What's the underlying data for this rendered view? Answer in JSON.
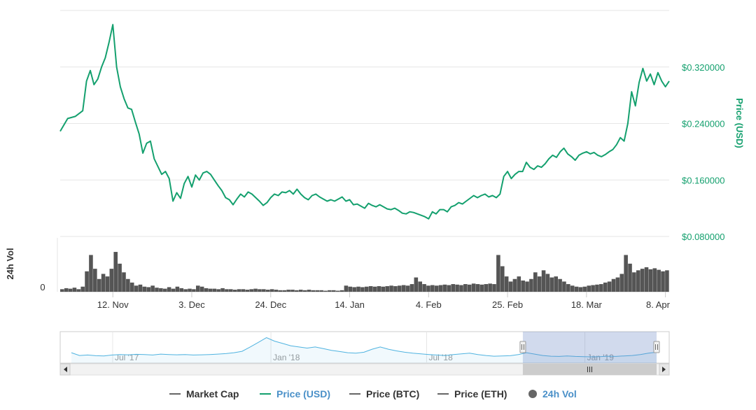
{
  "chart_data": {
    "type": "line",
    "title": "",
    "y_axis": {
      "label": "Price (USD)",
      "tick_labels": [
        "$0.080000",
        "$0.160000",
        "$0.240000",
        "$0.320000"
      ],
      "ticks": [
        0.08,
        0.16,
        0.24,
        0.32
      ],
      "ylim": [
        0.08,
        0.4
      ],
      "color": "#14a06e"
    },
    "x_axis": {
      "tick_labels": [
        "12. Nov",
        "3. Dec",
        "24. Dec",
        "14. Jan",
        "4. Feb",
        "25. Feb",
        "18. Mar",
        "8. Apr"
      ],
      "tick_dates": [
        "2018-11-12",
        "2018-12-03",
        "2018-12-24",
        "2019-01-14",
        "2019-02-04",
        "2019-02-25",
        "2019-03-18",
        "2019-04-08"
      ],
      "range": [
        "2018-10-29",
        "2019-04-09"
      ]
    },
    "volume_axis": {
      "label": "24h Vol",
      "tick_labels": [
        "0"
      ]
    },
    "series": [
      {
        "name": "Price (USD)",
        "color": "#14a06e",
        "points": [
          [
            "2018-10-29",
            0.229
          ],
          [
            "2018-10-31",
            0.247
          ],
          [
            "2018-11-02",
            0.25
          ],
          [
            "2018-11-04",
            0.258
          ],
          [
            "2018-11-05",
            0.3
          ],
          [
            "2018-11-06",
            0.315
          ],
          [
            "2018-11-07",
            0.295
          ],
          [
            "2018-11-08",
            0.303
          ],
          [
            "2018-11-09",
            0.32
          ],
          [
            "2018-11-10",
            0.333
          ],
          [
            "2018-11-11",
            0.355
          ],
          [
            "2018-11-12",
            0.38
          ],
          [
            "2018-11-13",
            0.32
          ],
          [
            "2018-11-14",
            0.292
          ],
          [
            "2018-11-15",
            0.275
          ],
          [
            "2018-11-16",
            0.262
          ],
          [
            "2018-11-17",
            0.26
          ],
          [
            "2018-11-18",
            0.242
          ],
          [
            "2018-11-19",
            0.225
          ],
          [
            "2018-11-20",
            0.198
          ],
          [
            "2018-11-21",
            0.212
          ],
          [
            "2018-11-22",
            0.215
          ],
          [
            "2018-11-23",
            0.19
          ],
          [
            "2018-11-25",
            0.168
          ],
          [
            "2018-11-26",
            0.172
          ],
          [
            "2018-11-27",
            0.162
          ],
          [
            "2018-11-28",
            0.13
          ],
          [
            "2018-11-29",
            0.142
          ],
          [
            "2018-11-30",
            0.134
          ],
          [
            "2018-12-01",
            0.155
          ],
          [
            "2018-12-02",
            0.165
          ],
          [
            "2018-12-03",
            0.15
          ],
          [
            "2018-12-04",
            0.167
          ],
          [
            "2018-12-05",
            0.16
          ],
          [
            "2018-12-06",
            0.17
          ],
          [
            "2018-12-07",
            0.172
          ],
          [
            "2018-12-08",
            0.168
          ],
          [
            "2018-12-09",
            0.16
          ],
          [
            "2018-12-10",
            0.152
          ],
          [
            "2018-12-11",
            0.145
          ],
          [
            "2018-12-12",
            0.135
          ],
          [
            "2018-12-13",
            0.132
          ],
          [
            "2018-12-14",
            0.125
          ],
          [
            "2018-12-15",
            0.133
          ],
          [
            "2018-12-16",
            0.14
          ],
          [
            "2018-12-17",
            0.136
          ],
          [
            "2018-12-18",
            0.143
          ],
          [
            "2018-12-19",
            0.14
          ],
          [
            "2018-12-20",
            0.135
          ],
          [
            "2018-12-21",
            0.13
          ],
          [
            "2018-12-22",
            0.124
          ],
          [
            "2018-12-23",
            0.128
          ],
          [
            "2018-12-24",
            0.135
          ],
          [
            "2018-12-25",
            0.14
          ],
          [
            "2018-12-26",
            0.138
          ],
          [
            "2018-12-27",
            0.143
          ],
          [
            "2018-12-28",
            0.142
          ],
          [
            "2018-12-29",
            0.145
          ],
          [
            "2018-12-30",
            0.14
          ],
          [
            "2018-12-31",
            0.147
          ],
          [
            "2019-01-01",
            0.14
          ],
          [
            "2019-01-02",
            0.135
          ],
          [
            "2019-01-03",
            0.132
          ],
          [
            "2019-01-04",
            0.138
          ],
          [
            "2019-01-05",
            0.14
          ],
          [
            "2019-01-06",
            0.136
          ],
          [
            "2019-01-07",
            0.133
          ],
          [
            "2019-01-08",
            0.13
          ],
          [
            "2019-01-09",
            0.132
          ],
          [
            "2019-01-10",
            0.13
          ],
          [
            "2019-01-11",
            0.133
          ],
          [
            "2019-01-12",
            0.136
          ],
          [
            "2019-01-13",
            0.13
          ],
          [
            "2019-01-14",
            0.132
          ],
          [
            "2019-01-15",
            0.125
          ],
          [
            "2019-01-16",
            0.126
          ],
          [
            "2019-01-17",
            0.123
          ],
          [
            "2019-01-18",
            0.12
          ],
          [
            "2019-01-19",
            0.127
          ],
          [
            "2019-01-20",
            0.124
          ],
          [
            "2019-01-21",
            0.122
          ],
          [
            "2019-01-22",
            0.125
          ],
          [
            "2019-01-23",
            0.122
          ],
          [
            "2019-01-24",
            0.119
          ],
          [
            "2019-01-25",
            0.118
          ],
          [
            "2019-01-26",
            0.12
          ],
          [
            "2019-01-27",
            0.117
          ],
          [
            "2019-01-28",
            0.113
          ],
          [
            "2019-01-29",
            0.112
          ],
          [
            "2019-01-30",
            0.115
          ],
          [
            "2019-01-31",
            0.114
          ],
          [
            "2019-02-01",
            0.112
          ],
          [
            "2019-02-02",
            0.11
          ],
          [
            "2019-02-03",
            0.108
          ],
          [
            "2019-02-04",
            0.105
          ],
          [
            "2019-02-05",
            0.115
          ],
          [
            "2019-02-06",
            0.112
          ],
          [
            "2019-02-07",
            0.118
          ],
          [
            "2019-02-08",
            0.118
          ],
          [
            "2019-02-09",
            0.115
          ],
          [
            "2019-02-10",
            0.122
          ],
          [
            "2019-02-11",
            0.124
          ],
          [
            "2019-02-12",
            0.128
          ],
          [
            "2019-02-13",
            0.126
          ],
          [
            "2019-02-14",
            0.13
          ],
          [
            "2019-02-15",
            0.134
          ],
          [
            "2019-02-16",
            0.138
          ],
          [
            "2019-02-17",
            0.135
          ],
          [
            "2019-02-18",
            0.138
          ],
          [
            "2019-02-19",
            0.14
          ],
          [
            "2019-02-20",
            0.136
          ],
          [
            "2019-02-21",
            0.138
          ],
          [
            "2019-02-22",
            0.135
          ],
          [
            "2019-02-23",
            0.14
          ],
          [
            "2019-02-24",
            0.165
          ],
          [
            "2019-02-25",
            0.172
          ],
          [
            "2019-02-26",
            0.162
          ],
          [
            "2019-02-27",
            0.168
          ],
          [
            "2019-02-28",
            0.172
          ],
          [
            "2019-03-01",
            0.172
          ],
          [
            "2019-03-02",
            0.185
          ],
          [
            "2019-03-03",
            0.178
          ],
          [
            "2019-03-04",
            0.175
          ],
          [
            "2019-03-05",
            0.18
          ],
          [
            "2019-03-06",
            0.178
          ],
          [
            "2019-03-07",
            0.183
          ],
          [
            "2019-03-08",
            0.19
          ],
          [
            "2019-03-09",
            0.195
          ],
          [
            "2019-03-10",
            0.192
          ],
          [
            "2019-03-11",
            0.2
          ],
          [
            "2019-03-12",
            0.205
          ],
          [
            "2019-03-13",
            0.197
          ],
          [
            "2019-03-14",
            0.193
          ],
          [
            "2019-03-15",
            0.188
          ],
          [
            "2019-03-16",
            0.195
          ],
          [
            "2019-03-17",
            0.198
          ],
          [
            "2019-03-18",
            0.2
          ],
          [
            "2019-03-19",
            0.197
          ],
          [
            "2019-03-20",
            0.199
          ],
          [
            "2019-03-21",
            0.195
          ],
          [
            "2019-03-22",
            0.193
          ],
          [
            "2019-03-23",
            0.196
          ],
          [
            "2019-03-24",
            0.2
          ],
          [
            "2019-03-25",
            0.203
          ],
          [
            "2019-03-26",
            0.21
          ],
          [
            "2019-03-27",
            0.22
          ],
          [
            "2019-03-28",
            0.215
          ],
          [
            "2019-03-29",
            0.24
          ],
          [
            "2019-03-30",
            0.285
          ],
          [
            "2019-03-31",
            0.265
          ],
          [
            "2019-04-01",
            0.298
          ],
          [
            "2019-04-02",
            0.318
          ],
          [
            "2019-04-03",
            0.3
          ],
          [
            "2019-04-04",
            0.31
          ],
          [
            "2019-04-05",
            0.295
          ],
          [
            "2019-04-06",
            0.312
          ],
          [
            "2019-04-07",
            0.3
          ],
          [
            "2019-04-08",
            0.292
          ],
          [
            "2019-04-09",
            0.3
          ]
        ]
      },
      {
        "name": "24h Vol",
        "color": "#555555",
        "relative_values": [
          0.05,
          0.07,
          0.06,
          0.08,
          0.05,
          0.1,
          0.4,
          0.72,
          0.45,
          0.25,
          0.35,
          0.3,
          0.45,
          0.78,
          0.55,
          0.38,
          0.25,
          0.18,
          0.12,
          0.14,
          0.1,
          0.09,
          0.12,
          0.08,
          0.07,
          0.06,
          0.09,
          0.06,
          0.1,
          0.07,
          0.05,
          0.06,
          0.05,
          0.12,
          0.1,
          0.07,
          0.06,
          0.06,
          0.05,
          0.07,
          0.05,
          0.05,
          0.04,
          0.05,
          0.05,
          0.04,
          0.05,
          0.06,
          0.05,
          0.05,
          0.04,
          0.05,
          0.04,
          0.03,
          0.03,
          0.04,
          0.04,
          0.03,
          0.04,
          0.03,
          0.04,
          0.03,
          0.03,
          0.03,
          0.02,
          0.03,
          0.03,
          0.02,
          0.03,
          0.12,
          0.1,
          0.09,
          0.1,
          0.09,
          0.1,
          0.11,
          0.1,
          0.11,
          0.1,
          0.11,
          0.12,
          0.11,
          0.12,
          0.13,
          0.12,
          0.15,
          0.28,
          0.2,
          0.15,
          0.12,
          0.13,
          0.12,
          0.13,
          0.14,
          0.13,
          0.15,
          0.14,
          0.13,
          0.15,
          0.14,
          0.16,
          0.15,
          0.14,
          0.15,
          0.16,
          0.15,
          0.72,
          0.5,
          0.3,
          0.2,
          0.25,
          0.3,
          0.22,
          0.2,
          0.25,
          0.38,
          0.3,
          0.42,
          0.35,
          0.28,
          0.3,
          0.25,
          0.2,
          0.15,
          0.12,
          0.1,
          0.09,
          0.1,
          0.12,
          0.13,
          0.14,
          0.15,
          0.18,
          0.2,
          0.25,
          0.28,
          0.35,
          0.72,
          0.55,
          0.38,
          0.42,
          0.45,
          0.48,
          0.44,
          0.46,
          0.43,
          0.4,
          0.42
        ]
      }
    ],
    "navigator": {
      "tick_labels": [
        "Jul '17",
        "Jan '18",
        "Jul '18",
        "Jan '19"
      ],
      "range": [
        "2017-05-01",
        "2019-04-09"
      ],
      "selected_range": [
        "2018-10-29",
        "2019-04-09"
      ],
      "color": "#4fb3e0",
      "relative_values": [
        0.3,
        0.18,
        0.2,
        0.17,
        0.16,
        0.2,
        0.22,
        0.21,
        0.23,
        0.22,
        0.2,
        0.24,
        0.22,
        0.21,
        0.22,
        0.2,
        0.21,
        0.22,
        0.24,
        0.26,
        0.3,
        0.36,
        0.55,
        0.75,
        0.95,
        0.8,
        0.7,
        0.6,
        0.55,
        0.5,
        0.55,
        0.48,
        0.4,
        0.35,
        0.3,
        0.28,
        0.32,
        0.45,
        0.55,
        0.45,
        0.38,
        0.32,
        0.28,
        0.25,
        0.22,
        0.2,
        0.18,
        0.22,
        0.25,
        0.28,
        0.22,
        0.18,
        0.15,
        0.16,
        0.17,
        0.22,
        0.3,
        0.24,
        0.18,
        0.15,
        0.14,
        0.16,
        0.14,
        0.13,
        0.12,
        0.13,
        0.15,
        0.14,
        0.16,
        0.18,
        0.22,
        0.28,
        0.32
      ]
    },
    "legend": {
      "placement": "bottom-center",
      "items": [
        {
          "label": "Market Cap",
          "color": "#666666",
          "marker": "line"
        },
        {
          "label": "Price (USD)",
          "color": "#14a06e",
          "text_color": "#4a90c8",
          "marker": "line"
        },
        {
          "label": "Price (BTC)",
          "color": "#666666",
          "marker": "line"
        },
        {
          "label": "Price (ETH)",
          "color": "#666666",
          "marker": "line"
        },
        {
          "label": "24h Vol",
          "color": "#666666",
          "text_color": "#4a90c8",
          "marker": "circle"
        }
      ]
    },
    "grid": true
  }
}
